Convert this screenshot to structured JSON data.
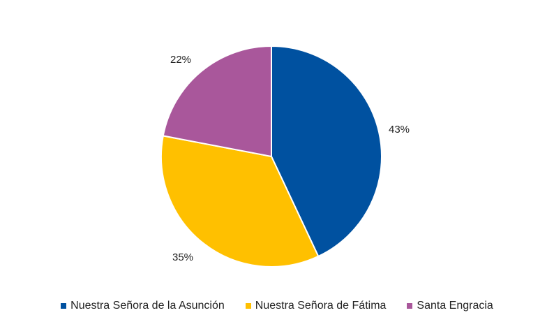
{
  "chart_data": {
    "type": "pie",
    "title": "",
    "categories": [
      "Nuestra Señora de la Asunción",
      "Nuestra Señora de Fátima",
      "Santa Engracia"
    ],
    "values": [
      43,
      35,
      22
    ],
    "labels": [
      "43%",
      "35%",
      "22%"
    ],
    "colors": [
      "#0051A0",
      "#FFC000",
      "#A9579B"
    ],
    "start_angle_deg": 0,
    "direction": "clockwise",
    "legend_position": "bottom"
  },
  "legend": {
    "items": [
      {
        "label": "Nuestra Señora de la Asunción",
        "color": "#0051A0"
      },
      {
        "label": "Nuestra Señora de Fátima",
        "color": "#FFC000"
      },
      {
        "label": "Santa Engracia",
        "color": "#A9579B"
      }
    ]
  }
}
